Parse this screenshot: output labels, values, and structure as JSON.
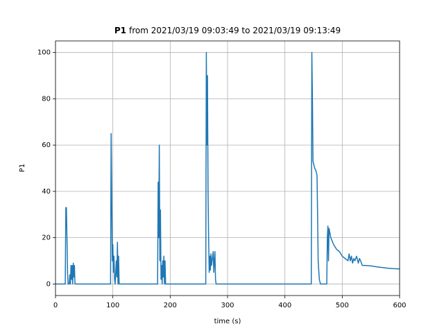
{
  "chart_data": {
    "type": "line",
    "title": {
      "bold": "P1",
      "text": "from 2021/03/19 09:03:49 to 2021/03/19 09:13:49"
    },
    "xlabel": "time (s)",
    "ylabel": "P1",
    "color": "#1f77b4",
    "grid": true,
    "xlim": [
      0,
      600
    ],
    "ylim": [
      -5,
      105
    ],
    "xticks": [
      0,
      100,
      200,
      300,
      400,
      500,
      600
    ],
    "yticks": [
      0,
      20,
      40,
      60,
      80,
      100
    ],
    "x": [
      0,
      17,
      18,
      19,
      20,
      21,
      22,
      24,
      25,
      26,
      27,
      28,
      29,
      30,
      31,
      32,
      33,
      34,
      96,
      97,
      98,
      99,
      100,
      101,
      102,
      103,
      104,
      106,
      107,
      108,
      109,
      110,
      111,
      178,
      179,
      180,
      181,
      182,
      183,
      184,
      185,
      186,
      187,
      188,
      189,
      190,
      191,
      192,
      262,
      263,
      264,
      265,
      266,
      267,
      268,
      269,
      270,
      271,
      272,
      275,
      276,
      278,
      279,
      280,
      446,
      447,
      448,
      449,
      450,
      452,
      454,
      456,
      457,
      458,
      460,
      462,
      473,
      474,
      475,
      476,
      477,
      480,
      485,
      490,
      495,
      500,
      505,
      510,
      512,
      514,
      516,
      518,
      520,
      522,
      525,
      528,
      530,
      532,
      535,
      540,
      550,
      560,
      570,
      580,
      590,
      600
    ],
    "values": [
      0,
      0,
      33,
      33,
      20,
      5,
      0,
      0,
      4,
      0,
      8,
      2,
      8,
      0,
      9,
      3,
      8,
      0,
      0,
      65,
      40,
      10,
      17,
      5,
      12,
      2,
      0,
      10,
      3,
      18,
      0,
      12,
      0,
      0,
      44,
      20,
      60,
      10,
      32,
      2,
      8,
      0,
      10,
      3,
      12,
      0,
      10,
      0,
      0,
      100,
      60,
      90,
      40,
      20,
      5,
      12,
      6,
      13,
      8,
      14,
      5,
      14,
      2,
      0,
      0,
      100,
      80,
      53,
      52,
      50,
      49,
      47,
      30,
      10,
      2,
      0,
      0,
      20,
      25,
      10,
      24,
      20,
      17,
      15,
      14,
      12,
      11,
      10,
      13,
      10,
      12,
      9,
      11,
      10,
      12,
      9,
      11,
      10,
      8,
      8,
      7.8,
      7.4,
      7.1,
      6.8,
      6.6,
      6.5
    ]
  }
}
